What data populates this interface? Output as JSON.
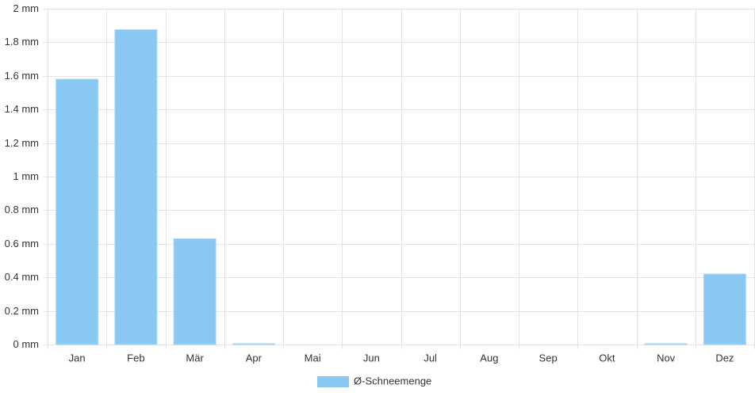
{
  "chart_data": {
    "type": "bar",
    "categories": [
      "Jan",
      "Feb",
      "Mär",
      "Apr",
      "Mai",
      "Jun",
      "Jul",
      "Aug",
      "Sep",
      "Okt",
      "Nov",
      "Dez"
    ],
    "series": [
      {
        "name": "Ø-Schneemenge",
        "color": "#89c8f2",
        "values": [
          1.58,
          1.875,
          0.63,
          0.005,
          0,
          0,
          0,
          0,
          0,
          0,
          0.005,
          0.42
        ]
      }
    ],
    "ylim": [
      0,
      2
    ],
    "yticks": [
      {
        "value": 0,
        "label": "0 mm"
      },
      {
        "value": 0.2,
        "label": "0.2 mm"
      },
      {
        "value": 0.4,
        "label": "0.4 mm"
      },
      {
        "value": 0.6,
        "label": "0.6 mm"
      },
      {
        "value": 0.8,
        "label": "0.8 mm"
      },
      {
        "value": 1,
        "label": "1 mm"
      },
      {
        "value": 1.2,
        "label": "1.2 mm"
      },
      {
        "value": 1.4,
        "label": "1.4 mm"
      },
      {
        "value": 1.6,
        "label": "1.6 mm"
      },
      {
        "value": 1.8,
        "label": "1.8 mm"
      },
      {
        "value": 2,
        "label": "2 mm"
      }
    ],
    "grid": true,
    "legend": "bottom"
  }
}
